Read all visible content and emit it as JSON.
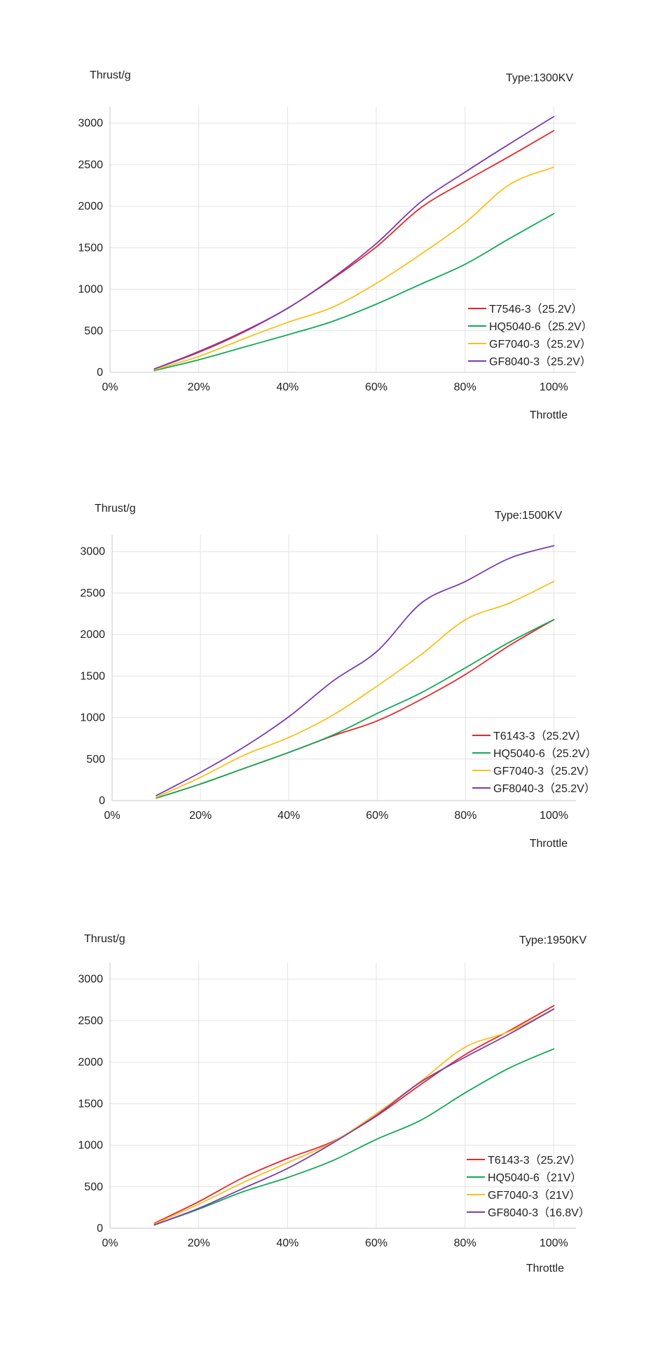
{
  "colors": {
    "red": "#e8262a",
    "green": "#10aa55",
    "yellow": "#f9c01c",
    "purple": "#7b3cb0",
    "grid": "#e3e3e3",
    "axis": "#c8c8c8",
    "text": "#222222"
  },
  "chart_data": [
    {
      "type": "line",
      "title": "",
      "type_label": "Type:1300KV",
      "ylabel": "Thrust/g",
      "xlabel": "Throttle",
      "xlim": [
        0,
        105
      ],
      "ylim": [
        0,
        3200
      ],
      "x_ticks": [
        0,
        20,
        40,
        60,
        80,
        100
      ],
      "x_tick_labels": [
        "0%",
        "20%",
        "40%",
        "60%",
        "80%",
        "100%"
      ],
      "y_ticks": [
        0,
        500,
        1000,
        1500,
        2000,
        2500,
        3000
      ],
      "y_tick_labels": [
        "0",
        "500",
        "1000",
        "1500",
        "2000",
        "2500",
        "3000"
      ],
      "grid": true,
      "legend_position": "bottom-right",
      "x": [
        10,
        20,
        30,
        40,
        50,
        60,
        70,
        80,
        90,
        100
      ],
      "series": [
        {
          "name": "T7546-3（25.2V）",
          "color": "red",
          "values": [
            40,
            240,
            480,
            770,
            1120,
            1510,
            1980,
            2300,
            2600,
            2910
          ]
        },
        {
          "name": "HQ5040-6（25.2V）",
          "color": "green",
          "values": [
            20,
            150,
            300,
            450,
            610,
            820,
            1060,
            1300,
            1610,
            1910
          ]
        },
        {
          "name": "GF7040-3（25.2V）",
          "color": "yellow",
          "values": [
            30,
            190,
            400,
            600,
            780,
            1070,
            1420,
            1800,
            2260,
            2470
          ]
        },
        {
          "name": "GF8040-3（25.2V）",
          "color": "purple",
          "values": [
            40,
            250,
            490,
            770,
            1130,
            1550,
            2050,
            2410,
            2750,
            3080
          ]
        }
      ]
    },
    {
      "type": "line",
      "title": "",
      "type_label": "Type:1500KV",
      "ylabel": "Thrust/g",
      "xlabel": "Throttle",
      "xlim": [
        0,
        105
      ],
      "ylim": [
        0,
        3200
      ],
      "x_ticks": [
        0,
        20,
        40,
        60,
        80,
        100
      ],
      "x_tick_labels": [
        "0%",
        "20%",
        "40%",
        "60%",
        "80%",
        "100%"
      ],
      "y_ticks": [
        0,
        500,
        1000,
        1500,
        2000,
        2500,
        3000
      ],
      "y_tick_labels": [
        "0",
        "500",
        "1000",
        "1500",
        "2000",
        "2500",
        "3000"
      ],
      "grid": true,
      "legend_position": "bottom-right",
      "x": [
        10,
        20,
        30,
        40,
        50,
        60,
        70,
        80,
        90,
        100
      ],
      "series": [
        {
          "name": "T6143-3（25.2V）",
          "color": "red",
          "values": [
            30,
            200,
            390,
            580,
            780,
            960,
            1220,
            1520,
            1870,
            2180
          ]
        },
        {
          "name": "HQ5040-6（25.2V）",
          "color": "green",
          "values": [
            30,
            200,
            390,
            580,
            790,
            1050,
            1300,
            1600,
            1910,
            2180
          ]
        },
        {
          "name": "GF7040-3（25.2V）",
          "color": "yellow",
          "values": [
            40,
            280,
            550,
            760,
            1030,
            1380,
            1760,
            2180,
            2380,
            2640
          ]
        },
        {
          "name": "GF8040-3（25.2V）",
          "color": "purple",
          "values": [
            60,
            340,
            650,
            1010,
            1440,
            1800,
            2380,
            2640,
            2920,
            3070
          ]
        }
      ]
    },
    {
      "type": "line",
      "title": "",
      "type_label": "Type:1950KV",
      "ylabel": "Thrust/g",
      "xlabel": "Throttle",
      "xlim": [
        0,
        105
      ],
      "ylim": [
        0,
        3200
      ],
      "x_ticks": [
        0,
        20,
        40,
        60,
        80,
        100
      ],
      "x_tick_labels": [
        "0%",
        "20%",
        "40%",
        "60%",
        "80%",
        "100%"
      ],
      "y_ticks": [
        0,
        500,
        1000,
        1500,
        2000,
        2500,
        3000
      ],
      "y_tick_labels": [
        "0",
        "500",
        "1000",
        "1500",
        "2000",
        "2500",
        "3000"
      ],
      "grid": true,
      "legend_position": "bottom-right",
      "x": [
        10,
        20,
        30,
        40,
        50,
        60,
        70,
        80,
        90,
        100
      ],
      "series": [
        {
          "name": "T6143-3（25.2V）",
          "color": "red",
          "values": [
            60,
            320,
            610,
            840,
            1040,
            1350,
            1730,
            2090,
            2380,
            2680
          ]
        },
        {
          "name": "HQ5040-6（21V）",
          "color": "green",
          "values": [
            40,
            230,
            440,
            610,
            810,
            1070,
            1300,
            1630,
            1930,
            2160
          ]
        },
        {
          "name": "GF7040-3（21V）",
          "color": "yellow",
          "values": [
            50,
            290,
            550,
            790,
            1030,
            1380,
            1770,
            2180,
            2370,
            2640
          ]
        },
        {
          "name": "GF8040-3（16.8V）",
          "color": "purple",
          "values": [
            40,
            240,
            480,
            720,
            1020,
            1360,
            1760,
            2060,
            2340,
            2640
          ]
        }
      ]
    }
  ]
}
